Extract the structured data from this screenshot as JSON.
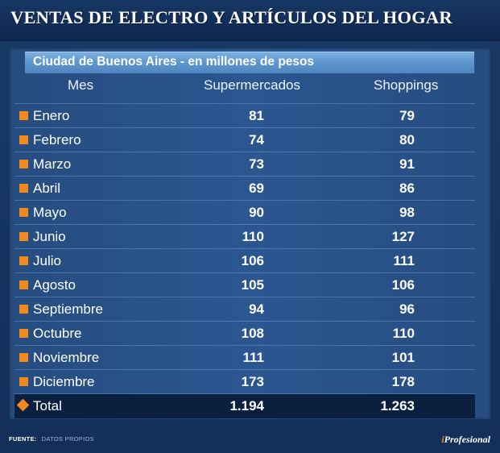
{
  "title": "VENTAS DE ELECTRO Y ARTÍCULOS DEL HOGAR",
  "subtitle": "Ciudad de Buenos Aires - en millones de pesos",
  "colors": {
    "accent": "#f08a1c",
    "background": "#16345f",
    "subtitle_bar": "#5f97cf"
  },
  "chart_data": {
    "type": "table",
    "columns": [
      "Mes",
      "Supermercados",
      "Shoppings"
    ],
    "rows": [
      {
        "mes": "Enero",
        "supermercados": "81",
        "shoppings": "79"
      },
      {
        "mes": "Febrero",
        "supermercados": "74",
        "shoppings": "80"
      },
      {
        "mes": "Marzo",
        "supermercados": "73",
        "shoppings": "91"
      },
      {
        "mes": "Abril",
        "supermercados": "69",
        "shoppings": "86"
      },
      {
        "mes": "Mayo",
        "supermercados": "90",
        "shoppings": "98"
      },
      {
        "mes": "Junio",
        "supermercados": "110",
        "shoppings": "127"
      },
      {
        "mes": "Julio",
        "supermercados": "106",
        "shoppings": "111"
      },
      {
        "mes": "Agosto",
        "supermercados": "105",
        "shoppings": "106"
      },
      {
        "mes": "Septiembre",
        "supermercados": "94",
        "shoppings": "96"
      },
      {
        "mes": "Octubre",
        "supermercados": "108",
        "shoppings": "110"
      },
      {
        "mes": "Noviembre",
        "supermercados": "111",
        "shoppings": "101"
      },
      {
        "mes": "Diciembre",
        "supermercados": "173",
        "shoppings": "178"
      }
    ],
    "total": {
      "mes": "Total",
      "supermercados": "1.194",
      "shoppings": "1.263"
    }
  },
  "footer": {
    "source_label": "FUENTE:",
    "source_text": "DATOS PROPIOS",
    "brand_i": "i",
    "brand_rest": "Profesional"
  }
}
